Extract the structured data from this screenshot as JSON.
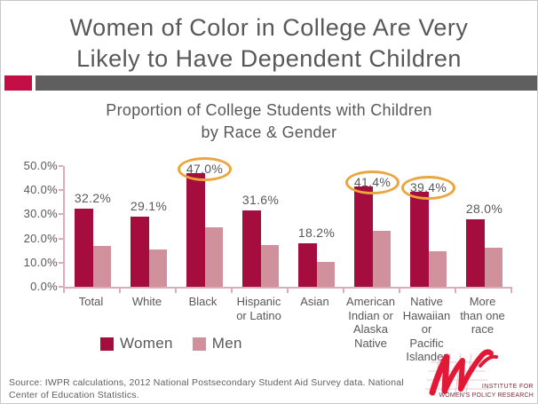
{
  "slide": {
    "title_line1": "Women of Color in College Are Very",
    "title_line2": "Likely to Have Dependent Children",
    "source_text": "Source: IWPR calculations, 2012 National Postsecondary Student Aid Survey data. National Center of Education Statistics.",
    "logo": {
      "line1": "INSTITUTE FOR",
      "line2": "WOMEN'S POLICY RESEARCH"
    }
  },
  "chart_data": {
    "type": "bar",
    "title_line1": "Proportion of College Students with Children",
    "title_line2": "by Race & Gender",
    "categories": [
      "Total",
      "White",
      "Black",
      "Hispanic or Latino",
      "Asian",
      "American Indian or Alaska Native",
      "Native Hawaiian or Pacific Islander",
      "More than one race"
    ],
    "category_label_lines": [
      [
        "Total"
      ],
      [
        "White"
      ],
      [
        "Black"
      ],
      [
        "Hispanic",
        "or Latino"
      ],
      [
        "Asian"
      ],
      [
        "American",
        "Indian or",
        "Alaska",
        "Native"
      ],
      [
        "Native",
        "Hawaiian",
        "or",
        "Pacific",
        "Islander"
      ],
      [
        "More",
        "than one",
        "race"
      ]
    ],
    "series": [
      {
        "name": "Women",
        "color": "#A50D3F",
        "values": [
          32.2,
          29.1,
          47.0,
          31.6,
          18.2,
          41.4,
          39.4,
          28.0
        ],
        "value_labels": [
          "32.2%",
          "29.1%",
          "47.0%",
          "31.6%",
          "18.2%",
          "41.4%",
          "39.4%",
          "28.0%"
        ],
        "labels_shown": true
      },
      {
        "name": "Men",
        "color": "#D0909C",
        "values": [
          17.0,
          15.6,
          24.7,
          17.3,
          10.2,
          23.2,
          14.8,
          16.1
        ],
        "labels_shown": false
      }
    ],
    "circled_indices": [
      2,
      5,
      6
    ],
    "circle_color": "#EAA63C",
    "ylim": [
      0,
      50
    ],
    "yticks": [
      "0.0%",
      "10.0%",
      "20.0%",
      "30.0%",
      "40.0%",
      "50.0%"
    ],
    "legend": [
      "Women",
      "Men"
    ],
    "legend_position": "bottom-left",
    "grid": false
  },
  "colors": {
    "women_bar": "#A50D3F",
    "men_bar": "#D0909C",
    "accent_square": "#C50E45",
    "accent_bar": "#5F5F5F",
    "text_gray": "#58585A",
    "axis": "#D9AEB8",
    "highlight_circle": "#EAA63C",
    "logo_red": "#E31837",
    "logo_text": "#7A2E3A"
  }
}
